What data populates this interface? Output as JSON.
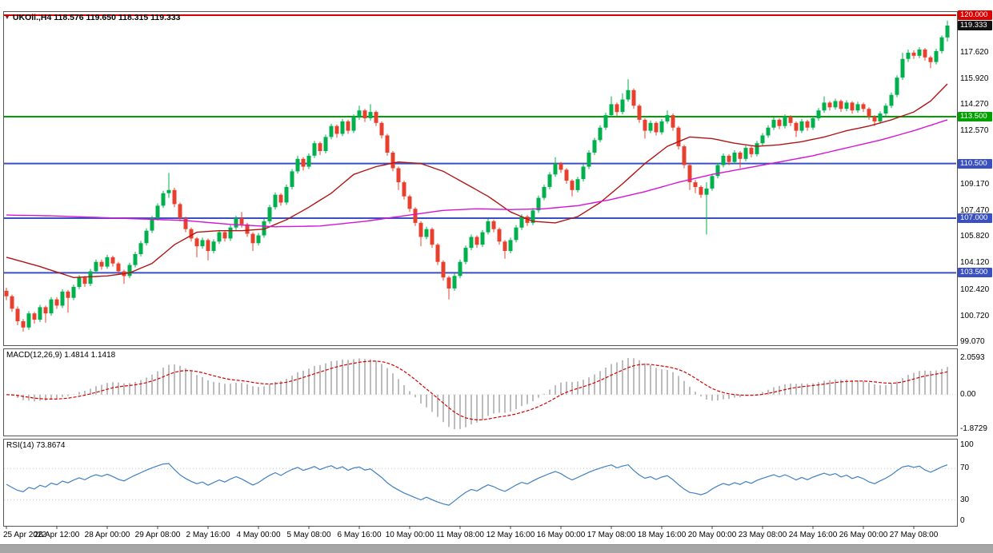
{
  "chart_header": {
    "arrow": "▼",
    "symbol_info": "UKOil.,H4 118.576 119.650 118.315 119.333"
  },
  "colors": {
    "bull": "#00b04c",
    "bear": "#e8402e",
    "ma_fast": "#b01414",
    "ma_slow": "#d414d4",
    "hline_red": "#dd0000",
    "hline_green": "#00a000",
    "hline_blue": "#3a50c2",
    "macd_hist": "#bdbdbd",
    "macd_signal": "#d40000",
    "rsi_line": "#3e80c0",
    "tag_current_bg": "#111111"
  },
  "hlines": [
    {
      "price": 120.0,
      "color": "#dd0000"
    },
    {
      "price": 113.5,
      "color": "#00a000"
    },
    {
      "price": 110.5,
      "color": "#3a50c2"
    },
    {
      "price": 107.0,
      "color": "#3a50c2"
    },
    {
      "price": 103.5,
      "color": "#3a50c2"
    }
  ],
  "price_axis": {
    "plain": [
      {
        "text": "117.620",
        "price": 117.62
      },
      {
        "text": "115.920",
        "price": 115.92
      },
      {
        "text": "114.270",
        "price": 114.27
      },
      {
        "text": "112.570",
        "price": 112.57
      },
      {
        "text": "109.170",
        "price": 109.17
      },
      {
        "text": "107.470",
        "price": 107.47
      },
      {
        "text": "105.820",
        "price": 105.82
      },
      {
        "text": "104.120",
        "price": 104.12
      },
      {
        "text": "102.420",
        "price": 102.42
      },
      {
        "text": "100.720",
        "price": 100.72
      },
      {
        "text": "99.070",
        "price": 99.07
      }
    ],
    "tags": [
      {
        "text": "120.000",
        "price": 120.0,
        "bg": "#dd0000"
      },
      {
        "text": "119.333",
        "price": 119.333,
        "bg": "#111111"
      },
      {
        "text": "113.500",
        "price": 113.5,
        "bg": "#00a000"
      },
      {
        "text": "110.500",
        "price": 110.5,
        "bg": "#3a50c2"
      },
      {
        "text": "107.000",
        "price": 107.0,
        "bg": "#3a50c2"
      },
      {
        "text": "103.500",
        "price": 103.5,
        "bg": "#3a50c2"
      }
    ]
  },
  "time_axis": [
    "25 Apr 2022",
    "26 Apr 12:00",
    "28 Apr 00:00",
    "29 Apr 08:00",
    "2 May 16:00",
    "4 May 00:00",
    "5 May 08:00",
    "6 May 16:00",
    "10 May 00:00",
    "11 May 08:00",
    "12 May 16:00",
    "16 May 00:00",
    "17 May 08:00",
    "18 May 16:00",
    "20 May 00:00",
    "23 May 08:00",
    "24 May 16:00",
    "26 May 00:00",
    "27 May 08:00"
  ],
  "chart_data": {
    "type": "candlestick",
    "title": "UKOil.,H4",
    "symbol": "UKOil",
    "timeframe": "H4",
    "price_range_visible": [
      99.07,
      120.0
    ],
    "last_ohlc": {
      "open": 118.576,
      "high": 119.65,
      "low": 118.315,
      "close": 119.333
    },
    "candles": [
      [
        102.35,
        102.55,
        101.75,
        102
      ],
      [
        102,
        102.1,
        101,
        101.2
      ],
      [
        101.2,
        101.35,
        100.15,
        100.4
      ],
      [
        100.4,
        100.55,
        99.75,
        100
      ],
      [
        100,
        101.05,
        99.85,
        100.9
      ],
      [
        100.9,
        101,
        100.25,
        100.5
      ],
      [
        100.5,
        101.45,
        100.35,
        101.3
      ],
      [
        101.3,
        101.4,
        100.3,
        100.9
      ],
      [
        100.9,
        101.95,
        100.75,
        101.8
      ],
      [
        101.8,
        101.95,
        101.2,
        101.4
      ],
      [
        101.4,
        102.45,
        101.25,
        102.3
      ],
      [
        102.3,
        102.4,
        100.95,
        101.9
      ],
      [
        101.9,
        102.75,
        101.75,
        102.6
      ],
      [
        102.6,
        103.35,
        102.45,
        103.2
      ],
      [
        103.2,
        103.3,
        102.6,
        102.8
      ],
      [
        102.8,
        103.75,
        102.65,
        103.6
      ],
      [
        103.6,
        104.35,
        103.45,
        104.2
      ],
      [
        104.2,
        104.35,
        103.7,
        103.9
      ],
      [
        103.9,
        104.65,
        103.75,
        104.5
      ],
      [
        104.5,
        104.6,
        103.9,
        104.1
      ],
      [
        104.1,
        104.2,
        103.4,
        103.6
      ],
      [
        103.6,
        103.7,
        102.8,
        103.3
      ],
      [
        103.3,
        104.15,
        103.15,
        104
      ],
      [
        104,
        104.85,
        103.85,
        104.7
      ],
      [
        104.7,
        105.55,
        104.55,
        105.4
      ],
      [
        105.4,
        106.35,
        105.25,
        106.2
      ],
      [
        106.2,
        107.15,
        106.05,
        107
      ],
      [
        107,
        107.95,
        106.85,
        107.8
      ],
      [
        107.8,
        108.75,
        107.65,
        108.6
      ],
      [
        108.6,
        109.9,
        108.3,
        108.8
      ],
      [
        108.8,
        108.95,
        107.7,
        107.9
      ],
      [
        107.9,
        108,
        106.8,
        107
      ],
      [
        107,
        107.1,
        106.1,
        106.3
      ],
      [
        106.3,
        106.4,
        105.5,
        105.7
      ],
      [
        105.7,
        105.8,
        104.5,
        105.2
      ],
      [
        105.2,
        105.75,
        105.05,
        105.6
      ],
      [
        105.6,
        105.7,
        104.3,
        104.9
      ],
      [
        104.9,
        105.65,
        104.75,
        105.5
      ],
      [
        105.5,
        106.25,
        105.35,
        106.1
      ],
      [
        106.1,
        106.2,
        105.5,
        105.7
      ],
      [
        105.7,
        106.55,
        105.55,
        106.4
      ],
      [
        106.4,
        107.15,
        106.25,
        107
      ],
      [
        107,
        107.4,
        106.4,
        106.6
      ],
      [
        106.6,
        106.7,
        105.8,
        106
      ],
      [
        106,
        106.1,
        104.9,
        105.4
      ],
      [
        105.4,
        106.05,
        105.25,
        105.9
      ],
      [
        105.9,
        106.95,
        105.75,
        106.8
      ],
      [
        106.8,
        107.85,
        106.65,
        107.7
      ],
      [
        107.7,
        108.65,
        107.55,
        108.5
      ],
      [
        108.5,
        108.6,
        107.8,
        108
      ],
      [
        108,
        109.15,
        107.85,
        109
      ],
      [
        109,
        110.15,
        108.85,
        110
      ],
      [
        110,
        111,
        109.85,
        110.8
      ],
      [
        110.8,
        110.9,
        110.05,
        110.3
      ],
      [
        110.3,
        111.15,
        110.15,
        111
      ],
      [
        111,
        111.95,
        110.85,
        111.8
      ],
      [
        111.8,
        111.9,
        111.05,
        111.3
      ],
      [
        111.3,
        112.35,
        111.15,
        112.2
      ],
      [
        112.2,
        113.05,
        112.05,
        112.9
      ],
      [
        112.9,
        113,
        112.15,
        112.4
      ],
      [
        112.4,
        113.35,
        112.25,
        113.2
      ],
      [
        113.2,
        113.3,
        112.4,
        112.6
      ],
      [
        112.6,
        113.65,
        112.45,
        113.5
      ],
      [
        113.5,
        114.2,
        113.3,
        113.9
      ],
      [
        113.9,
        114,
        113.15,
        113.4
      ],
      [
        113.4,
        114.3,
        113.25,
        113.8
      ],
      [
        113.8,
        113.9,
        112.9,
        113.1
      ],
      [
        113.1,
        113.2,
        112.1,
        112.3
      ],
      [
        112.3,
        112.4,
        111,
        111.2
      ],
      [
        111.2,
        111.3,
        110,
        110.2
      ],
      [
        110.2,
        110.3,
        108.8,
        109.3
      ],
      [
        109.3,
        109.4,
        108.2,
        108.4
      ],
      [
        108.4,
        108.5,
        107.4,
        107.6
      ],
      [
        107.6,
        107.7,
        106.5,
        106.7
      ],
      [
        106.7,
        106.8,
        105.2,
        105.8
      ],
      [
        105.8,
        106.45,
        105.65,
        106.3
      ],
      [
        106.3,
        106.4,
        105.1,
        105.3
      ],
      [
        105.3,
        105.4,
        104,
        104.2
      ],
      [
        104.2,
        104.3,
        103,
        103.2
      ],
      [
        103.2,
        103.3,
        101.8,
        102.5
      ],
      [
        102.5,
        103.45,
        102.35,
        103.3
      ],
      [
        103.3,
        104.35,
        103.15,
        104.2
      ],
      [
        104.2,
        105.25,
        104.05,
        105.1
      ],
      [
        105.1,
        105.95,
        104.95,
        105.8
      ],
      [
        105.8,
        105.9,
        105.1,
        105.3
      ],
      [
        105.3,
        106.25,
        105.15,
        106.1
      ],
      [
        106.1,
        106.95,
        105.95,
        106.8
      ],
      [
        106.8,
        106.9,
        106.1,
        106.3
      ],
      [
        106.3,
        106.4,
        105.3,
        105.5
      ],
      [
        105.5,
        105.6,
        104.4,
        104.9
      ],
      [
        104.9,
        105.75,
        104.75,
        105.6
      ],
      [
        105.6,
        106.55,
        105.45,
        106.4
      ],
      [
        106.4,
        107.25,
        106.25,
        107.1
      ],
      [
        107.1,
        107.2,
        106.5,
        106.7
      ],
      [
        106.7,
        107.65,
        106.55,
        107.5
      ],
      [
        107.5,
        108.45,
        107.35,
        108.3
      ],
      [
        108.3,
        109.15,
        108.15,
        109
      ],
      [
        109,
        109.95,
        108.85,
        109.8
      ],
      [
        109.8,
        110.9,
        109.65,
        110.5
      ],
      [
        110.5,
        110.6,
        109.9,
        110.1
      ],
      [
        110.1,
        110.2,
        109.2,
        109.4
      ],
      [
        109.4,
        109.5,
        108.4,
        108.8
      ],
      [
        108.8,
        109.65,
        108.65,
        109.5
      ],
      [
        109.5,
        110.45,
        109.35,
        110.3
      ],
      [
        110.3,
        111.35,
        110.15,
        111.2
      ],
      [
        111.2,
        112.15,
        111.05,
        112
      ],
      [
        112,
        112.95,
        111.85,
        112.8
      ],
      [
        112.8,
        113.75,
        112.65,
        113.6
      ],
      [
        113.6,
        114.8,
        113.45,
        114.3
      ],
      [
        114.3,
        114.4,
        113.55,
        113.8
      ],
      [
        113.8,
        115,
        113.65,
        114.6
      ],
      [
        114.6,
        115.9,
        114.45,
        115.2
      ],
      [
        115.2,
        115.3,
        114,
        114.2
      ],
      [
        114.2,
        114.3,
        113.1,
        113.3
      ],
      [
        113.3,
        113.4,
        112.1,
        112.6
      ],
      [
        112.6,
        113.25,
        112.45,
        113.1
      ],
      [
        113.1,
        113.2,
        112.3,
        112.5
      ],
      [
        112.5,
        113.35,
        112.35,
        113.2
      ],
      [
        113.2,
        113.9,
        113.05,
        113.6
      ],
      [
        113.6,
        113.7,
        112.6,
        112.8
      ],
      [
        112.8,
        112.9,
        111.4,
        111.6
      ],
      [
        111.6,
        111.7,
        110.2,
        110.4
      ],
      [
        110.4,
        110.5,
        108.8,
        109.3
      ],
      [
        109.3,
        109.45,
        108.6,
        109
      ],
      [
        109,
        109.1,
        108.3,
        108.5
      ],
      [
        108.5,
        109.3,
        105.95,
        108.9
      ],
      [
        108.9,
        109.85,
        108.75,
        109.7
      ],
      [
        109.7,
        110.55,
        109.55,
        110.4
      ],
      [
        110.4,
        111.15,
        110.25,
        111
      ],
      [
        111,
        111.1,
        110.4,
        110.6
      ],
      [
        110.6,
        111.35,
        110.45,
        111.2
      ],
      [
        111.2,
        111.3,
        110.2,
        110.8
      ],
      [
        110.8,
        111.65,
        110.65,
        111.5
      ],
      [
        111.5,
        111.6,
        110.9,
        111.1
      ],
      [
        111.1,
        111.95,
        110.95,
        111.8
      ],
      [
        111.8,
        112.45,
        111.65,
        112.3
      ],
      [
        112.3,
        112.95,
        112.15,
        112.8
      ],
      [
        112.8,
        113.45,
        112.65,
        113.3
      ],
      [
        113.3,
        113.4,
        112.7,
        112.9
      ],
      [
        112.9,
        113.65,
        112.75,
        113.5
      ],
      [
        113.5,
        113.6,
        112.9,
        113.1
      ],
      [
        113.1,
        113.2,
        112.2,
        112.6
      ],
      [
        112.6,
        113.35,
        112.45,
        113.2
      ],
      [
        113.2,
        113.3,
        112.6,
        112.8
      ],
      [
        112.8,
        113.55,
        112.65,
        113.4
      ],
      [
        113.4,
        114.05,
        113.25,
        113.9
      ],
      [
        113.9,
        114.8,
        113.75,
        114.4
      ],
      [
        114.4,
        114.5,
        113.9,
        114.1
      ],
      [
        114.1,
        114.65,
        113.95,
        114.5
      ],
      [
        114.5,
        114.6,
        113.8,
        114
      ],
      [
        114,
        114.55,
        113.85,
        114.4
      ],
      [
        114.4,
        114.5,
        113.7,
        113.9
      ],
      [
        113.9,
        114.45,
        113.75,
        114.3
      ],
      [
        114.3,
        114.4,
        113.8,
        114
      ],
      [
        114,
        114.1,
        113.3,
        113.5
      ],
      [
        113.5,
        113.6,
        112.9,
        113.2
      ],
      [
        113.2,
        113.85,
        113.05,
        113.7
      ],
      [
        113.7,
        114.35,
        113.55,
        114.2
      ],
      [
        114.2,
        115.05,
        114.05,
        114.9
      ],
      [
        114.9,
        116.15,
        114.75,
        116
      ],
      [
        116,
        117.6,
        115.85,
        117.2
      ],
      [
        117.2,
        117.8,
        117,
        117.6
      ],
      [
        117.6,
        117.75,
        117.2,
        117.4
      ],
      [
        117.4,
        117.95,
        117.25,
        117.8
      ],
      [
        117.8,
        117.9,
        117.1,
        117.3
      ],
      [
        117.3,
        117.4,
        116.6,
        117
      ],
      [
        117,
        117.85,
        116.85,
        117.7
      ],
      [
        117.7,
        118.7,
        117.55,
        118.58
      ],
      [
        118.576,
        119.65,
        118.315,
        119.333
      ]
    ],
    "ma_fast_red_anchors": [
      [
        0,
        104.5
      ],
      [
        6,
        103.9
      ],
      [
        12,
        103.2
      ],
      [
        18,
        103.3
      ],
      [
        22,
        103.5
      ],
      [
        26,
        104.1
      ],
      [
        30,
        105.3
      ],
      [
        34,
        106.1
      ],
      [
        38,
        106.2
      ],
      [
        42,
        106.2
      ],
      [
        46,
        106.3
      ],
      [
        50,
        106.9
      ],
      [
        54,
        107.7
      ],
      [
        58,
        108.6
      ],
      [
        62,
        109.8
      ],
      [
        66,
        110.3
      ],
      [
        70,
        110.6
      ],
      [
        74,
        110.5
      ],
      [
        78,
        110.0
      ],
      [
        82,
        109.2
      ],
      [
        86,
        108.4
      ],
      [
        90,
        107.4
      ],
      [
        94,
        106.8
      ],
      [
        98,
        106.7
      ],
      [
        102,
        107.1
      ],
      [
        106,
        108.0
      ],
      [
        110,
        109.2
      ],
      [
        114,
        110.5
      ],
      [
        118,
        111.6
      ],
      [
        122,
        112.2
      ],
      [
        126,
        112.1
      ],
      [
        130,
        111.8
      ],
      [
        134,
        111.6
      ],
      [
        138,
        111.7
      ],
      [
        142,
        111.9
      ],
      [
        146,
        112.2
      ],
      [
        150,
        112.6
      ],
      [
        154,
        112.9
      ],
      [
        158,
        113.3
      ],
      [
        162,
        113.8
      ],
      [
        165,
        114.5
      ],
      [
        168,
        115.6
      ]
    ],
    "ma_slow_magenta_anchors": [
      [
        0,
        107.2
      ],
      [
        8,
        107.15
      ],
      [
        16,
        107.05
      ],
      [
        24,
        106.95
      ],
      [
        32,
        106.85
      ],
      [
        40,
        106.6
      ],
      [
        48,
        106.45
      ],
      [
        56,
        106.5
      ],
      [
        64,
        106.8
      ],
      [
        72,
        107.2
      ],
      [
        78,
        107.5
      ],
      [
        84,
        107.6
      ],
      [
        90,
        107.55
      ],
      [
        96,
        107.6
      ],
      [
        102,
        107.8
      ],
      [
        108,
        108.2
      ],
      [
        114,
        108.7
      ],
      [
        120,
        109.3
      ],
      [
        126,
        109.8
      ],
      [
        132,
        110.2
      ],
      [
        138,
        110.6
      ],
      [
        144,
        111.0
      ],
      [
        150,
        111.5
      ],
      [
        156,
        112.0
      ],
      [
        162,
        112.6
      ],
      [
        168,
        113.3
      ]
    ],
    "macd": {
      "label": "MACD(12,26,9) 1.4814 1.1418",
      "params": [
        12,
        26,
        9
      ],
      "value": 1.4814,
      "signal": 1.1418,
      "axis": [
        "2.0593",
        "0.00",
        "-1.8729"
      ]
    },
    "rsi": {
      "label": "RSI(14) 73.8674",
      "period": 14,
      "value": 73.8674,
      "levels": [
        70,
        30
      ],
      "axis": [
        {
          "text": "100",
          "value": 100
        },
        {
          "text": "70",
          "value": 70
        },
        {
          "text": "30",
          "value": 30
        },
        {
          "text": "0",
          "value": 0
        }
      ]
    }
  }
}
